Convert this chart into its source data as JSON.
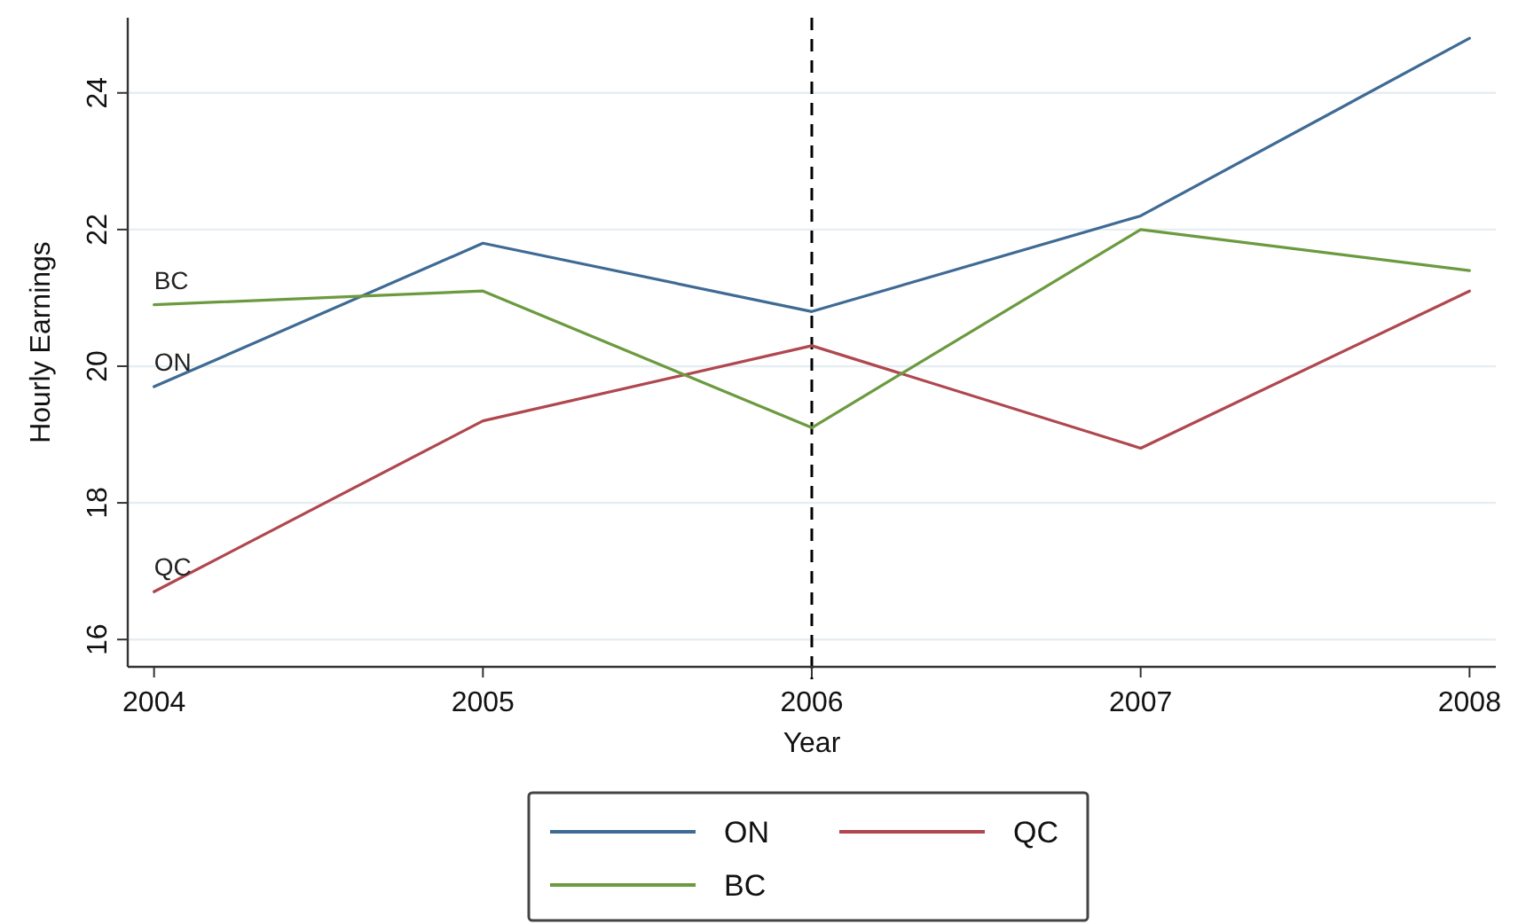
{
  "chart_data": {
    "type": "line",
    "xlabel": "Year",
    "ylabel": "Hourly Earnings",
    "x": [
      2004,
      2005,
      2006,
      2007,
      2008
    ],
    "series": [
      {
        "name": "ON",
        "color": "#3e6a94",
        "values": [
          19.7,
          21.8,
          20.8,
          22.2,
          24.8
        ]
      },
      {
        "name": "QC",
        "color": "#b0474f",
        "values": [
          16.7,
          19.2,
          20.3,
          18.8,
          21.1
        ]
      },
      {
        "name": "BC",
        "color": "#6b9a3f",
        "values": [
          20.9,
          21.1,
          19.1,
          22.0,
          21.4
        ]
      }
    ],
    "xlim": [
      2003.92,
      2008.08
    ],
    "ylim": [
      15.6,
      25.1
    ],
    "xticks": [
      2004,
      2005,
      2006,
      2007,
      2008
    ],
    "yticks": [
      16,
      18,
      20,
      22,
      24
    ],
    "grid": "y",
    "legend": "bottom",
    "marker": "none",
    "line_style": "solid",
    "ref_lines": [
      {
        "axis": "x",
        "value": 2006,
        "color": "#000000",
        "line_style": "dashed"
      }
    ]
  }
}
